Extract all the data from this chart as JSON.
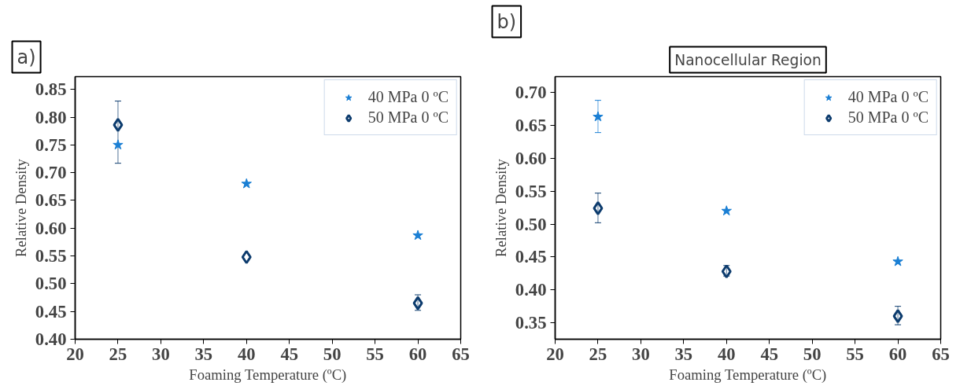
{
  "chart_data": [
    {
      "type": "scatter",
      "annotations": [
        "a)"
      ],
      "xlabel": "Foaming Temperature (ºC)",
      "ylabel": "Relative Density",
      "xlim": [
        20,
        65
      ],
      "ylim": [
        0.4,
        0.873
      ],
      "xticks": [
        20,
        25,
        30,
        35,
        40,
        45,
        50,
        55,
        60,
        65
      ],
      "yticks": [
        {
          "value": 0.4,
          "label": "0.40"
        },
        {
          "value": 0.45,
          "label": "0.45"
        },
        {
          "value": 0.5,
          "label": "0.50"
        },
        {
          "value": 0.55,
          "label": "0.55"
        },
        {
          "value": 0.6,
          "label": "0.60"
        },
        {
          "value": 0.65,
          "label": "0.65"
        },
        {
          "value": 0.7,
          "label": "0.70"
        },
        {
          "value": 0.75,
          "label": "0.75"
        },
        {
          "value": 0.8,
          "label": "0.80"
        },
        {
          "value": 0.85,
          "label": "0.85"
        }
      ],
      "grid": false,
      "legend": "top right",
      "series": [
        {
          "name": "40 MPa 0 ºC",
          "color": "#1a7fd4",
          "marker": "star",
          "x": [
            25,
            40,
            60
          ],
          "values": [
            0.75,
            0.68,
            0.587
          ]
        },
        {
          "name": "50 MPa 0 ºC",
          "color": "#0d3c6e",
          "marker": "diamond",
          "x": [
            25,
            40,
            60
          ],
          "values": [
            0.786,
            0.548,
            0.465
          ],
          "errors": [
            [
              0.717,
              0.829
            ],
            null,
            [
              0.452,
              0.48
            ]
          ]
        }
      ]
    },
    {
      "type": "scatter",
      "title": "Nanocellular Region",
      "annotations": [
        "b)"
      ],
      "xlabel": "Foaming Temperature (ºC)",
      "ylabel": "Relative Density",
      "xlim": [
        20,
        65
      ],
      "ylim": [
        0.325,
        0.724
      ],
      "xticks": [
        20,
        25,
        30,
        35,
        40,
        45,
        50,
        55,
        60,
        65
      ],
      "yticks": [
        {
          "value": 0.35,
          "label": "0.35"
        },
        {
          "value": 0.4,
          "label": "0.40"
        },
        {
          "value": 0.45,
          "label": "0.45"
        },
        {
          "value": 0.5,
          "label": "0.50"
        },
        {
          "value": 0.55,
          "label": "0.55"
        },
        {
          "value": 0.6,
          "label": "0.60"
        },
        {
          "value": 0.65,
          "label": "0.65"
        },
        {
          "value": 0.7,
          "label": "0.70"
        }
      ],
      "grid": false,
      "legend": "top right",
      "series": [
        {
          "name": "40 MPa 0 ºC",
          "color": "#1a7fd4",
          "marker": "star",
          "x": [
            25,
            40,
            60
          ],
          "values": [
            0.663,
            0.52,
            0.443
          ],
          "errors": [
            [
              0.639,
              0.688
            ],
            null,
            null
          ]
        },
        {
          "name": "50 MPa 0 ºC",
          "color": "#0d3c6e",
          "marker": "diamond",
          "x": [
            25,
            40,
            60
          ],
          "values": [
            0.524,
            0.428,
            0.36
          ],
          "errors": [
            [
              0.502,
              0.547
            ],
            [
              0.421,
              0.437
            ],
            [
              0.347,
              0.375
            ]
          ]
        }
      ]
    }
  ]
}
